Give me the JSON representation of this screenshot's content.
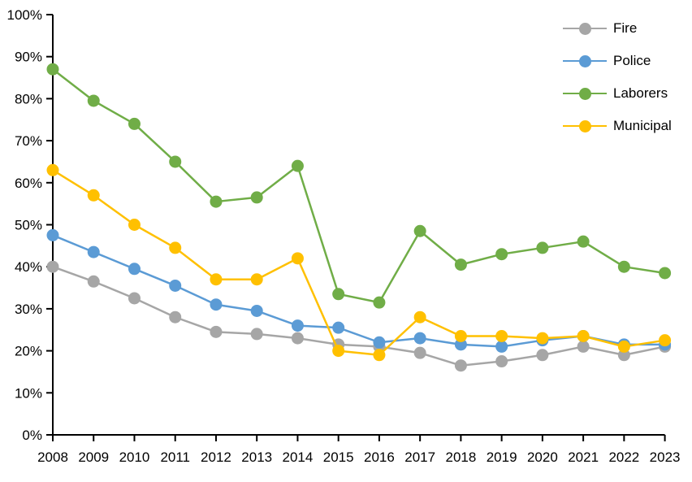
{
  "chart_data": {
    "type": "line",
    "title": "",
    "xlabel": "",
    "ylabel": "",
    "grid": false,
    "legend_position": "top-right",
    "x_categories": [
      "2008",
      "2009",
      "2010",
      "2011",
      "2012",
      "2013",
      "2014",
      "2015",
      "2016",
      "2017",
      "2018",
      "2019",
      "2020",
      "2021",
      "2022",
      "2023"
    ],
    "y_axis": {
      "min": 0,
      "max": 100,
      "step": 10,
      "unit": "%",
      "tick_labels": [
        "0%",
        "10%",
        "20%",
        "30%",
        "40%",
        "50%",
        "60%",
        "70%",
        "80%",
        "90%",
        "100%"
      ]
    },
    "series": [
      {
        "name": "Fire",
        "color": "#a6a6a6",
        "values": [
          40,
          36.5,
          32.5,
          28,
          24.5,
          24,
          23,
          21.5,
          21,
          19.5,
          16.5,
          17.5,
          19,
          21,
          19,
          21
        ]
      },
      {
        "name": "Police",
        "color": "#5b9bd5",
        "values": [
          47.5,
          43.5,
          39.5,
          35.5,
          31,
          29.5,
          26,
          25.5,
          22,
          23,
          21.5,
          21,
          22.5,
          23.5,
          21.5,
          21.5
        ]
      },
      {
        "name": "Laborers",
        "color": "#70ad47",
        "values": [
          87,
          79.5,
          74,
          65,
          55.5,
          56.5,
          64,
          33.5,
          31.5,
          48.5,
          40.5,
          43,
          44.5,
          46,
          40,
          38.5
        ]
      },
      {
        "name": "Municipal",
        "color": "#ffc000",
        "values": [
          63,
          57,
          50,
          44.5,
          37,
          37,
          42,
          20,
          19,
          28,
          23.5,
          23.5,
          23,
          23.5,
          21,
          22.5
        ]
      }
    ],
    "axis_color": "#000000"
  }
}
